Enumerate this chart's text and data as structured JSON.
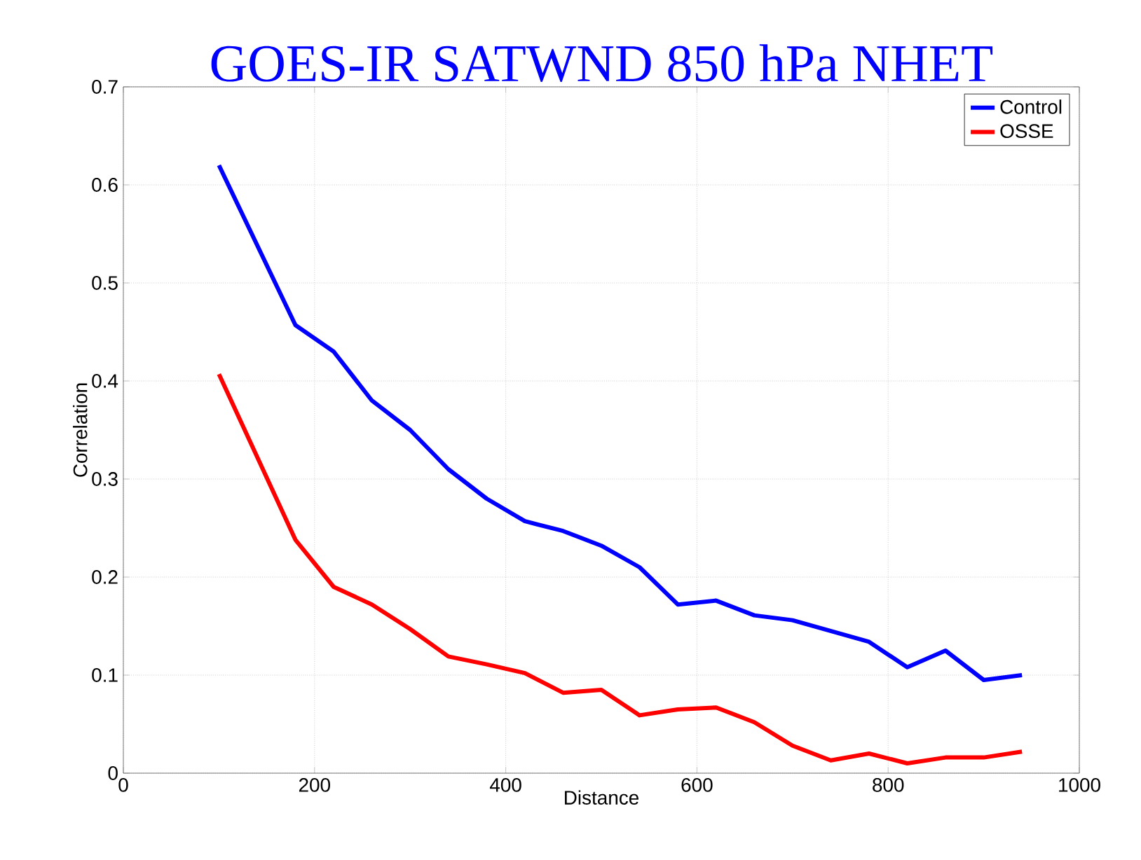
{
  "chart_data": {
    "type": "line",
    "title": "GOES-IR SATWND 850 hPa NHET",
    "xlabel": "Distance",
    "ylabel": "Correlation",
    "x": [
      100,
      180,
      220,
      260,
      300,
      340,
      380,
      420,
      460,
      500,
      540,
      580,
      620,
      660,
      700,
      740,
      780,
      820,
      860,
      900,
      940
    ],
    "series": [
      {
        "name": "Control",
        "color": "#0000ff",
        "values": [
          0.62,
          0.457,
          0.43,
          0.38,
          0.35,
          0.31,
          0.28,
          0.257,
          0.247,
          0.232,
          0.21,
          0.172,
          0.176,
          0.161,
          0.156,
          0.145,
          0.134,
          0.108,
          0.125,
          0.095,
          0.1
        ]
      },
      {
        "name": "OSSE",
        "color": "#ff0000",
        "values": [
          0.407,
          0.238,
          0.19,
          0.172,
          0.147,
          0.119,
          0.111,
          0.102,
          0.082,
          0.085,
          0.059,
          0.065,
          0.067,
          0.052,
          0.028,
          0.013,
          0.02,
          0.01,
          0.016,
          0.016,
          0.022
        ]
      }
    ],
    "xlim": [
      0,
      1000
    ],
    "ylim": [
      0,
      0.7
    ],
    "xticks": [
      0,
      200,
      400,
      600,
      800,
      1000
    ],
    "yticks": [
      0,
      0.1,
      0.2,
      0.3,
      0.4,
      0.5,
      0.6,
      0.7
    ],
    "grid": true,
    "legend": "top right"
  }
}
